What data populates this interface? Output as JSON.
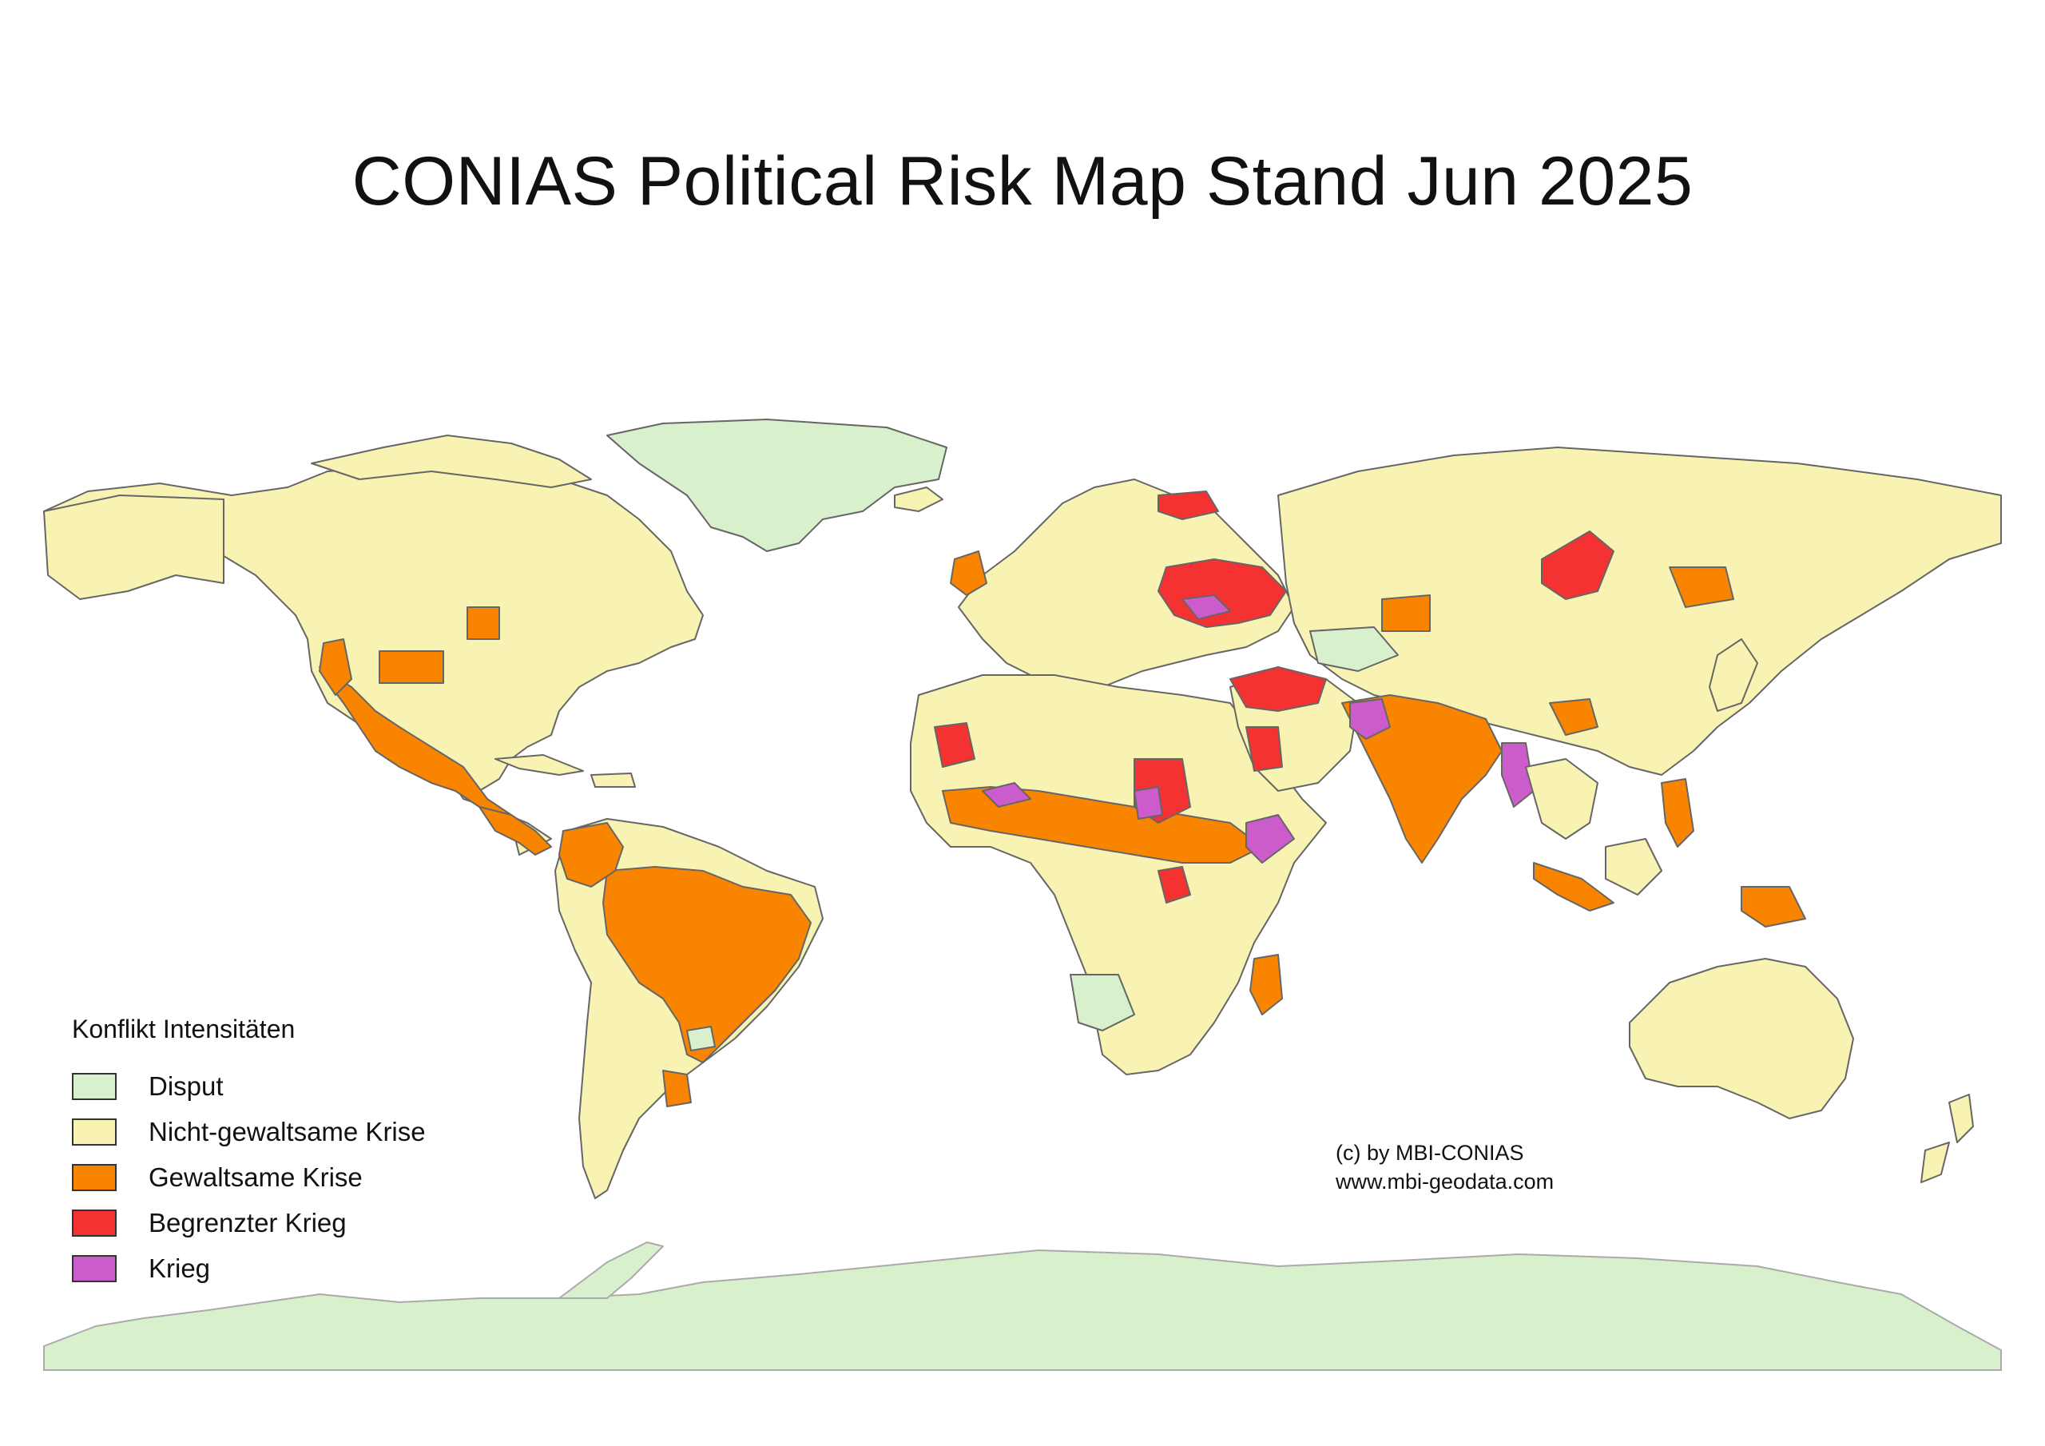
{
  "title": "CONIAS Political Risk Map Stand Jun 2025",
  "legend": {
    "title": "Konflikt Intensitäten",
    "items": [
      {
        "label": "Disput",
        "color": "#d9f0cc"
      },
      {
        "label": "Nicht-gewaltsame Krise",
        "color": "#f8f3b3"
      },
      {
        "label": "Gewaltsame Krise",
        "color": "#f88400"
      },
      {
        "label": "Begrenzter Krieg",
        "color": "#f43232"
      },
      {
        "label": "Krieg",
        "color": "#cc5ccc"
      }
    ]
  },
  "credit": {
    "line1": "(c) by MBI-CONIAS",
    "line2": "www.mbi-geodata.com"
  },
  "colors": {
    "disput": "#d9f0cc",
    "nicht_gewaltsam": "#f8f3b3",
    "gewaltsam": "#f88400",
    "begrenzt": "#f43232",
    "krieg": "#cc5ccc",
    "border": "#555555",
    "ocean": "#ffffff"
  }
}
